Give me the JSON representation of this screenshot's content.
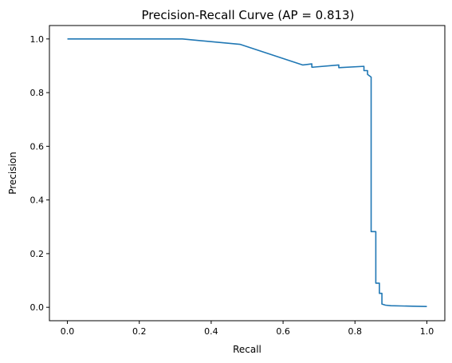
{
  "chart_data": {
    "type": "line",
    "title": "Precision-Recall Curve (AP = 0.813)",
    "xlabel": "Recall",
    "ylabel": "Precision",
    "xlim": [
      -0.05,
      1.05
    ],
    "ylim": [
      -0.05,
      1.05
    ],
    "xticks": [
      "0.0",
      "0.2",
      "0.4",
      "0.6",
      "0.8",
      "1.0"
    ],
    "yticks": [
      "0.0",
      "0.2",
      "0.4",
      "0.6",
      "0.8",
      "1.0"
    ],
    "grid": false,
    "line_color": "#1f77b4",
    "series": [
      {
        "x": [
          0.0,
          0.32,
          0.48,
          0.655,
          0.68,
          0.68,
          0.685,
          0.755,
          0.755,
          0.825,
          0.825,
          0.835,
          0.835,
          0.845,
          0.845,
          0.848,
          0.848,
          0.858,
          0.858,
          0.868,
          0.868,
          0.875,
          0.875,
          0.885,
          0.9,
          0.93,
          0.96,
          1.0
        ],
        "y": [
          1.0,
          1.0,
          0.98,
          0.903,
          0.907,
          0.895,
          0.895,
          0.903,
          0.893,
          0.898,
          0.882,
          0.882,
          0.868,
          0.858,
          0.282,
          0.282,
          0.282,
          0.282,
          0.09,
          0.09,
          0.052,
          0.052,
          0.012,
          0.008,
          0.006,
          0.005,
          0.004,
          0.003
        ]
      }
    ]
  }
}
